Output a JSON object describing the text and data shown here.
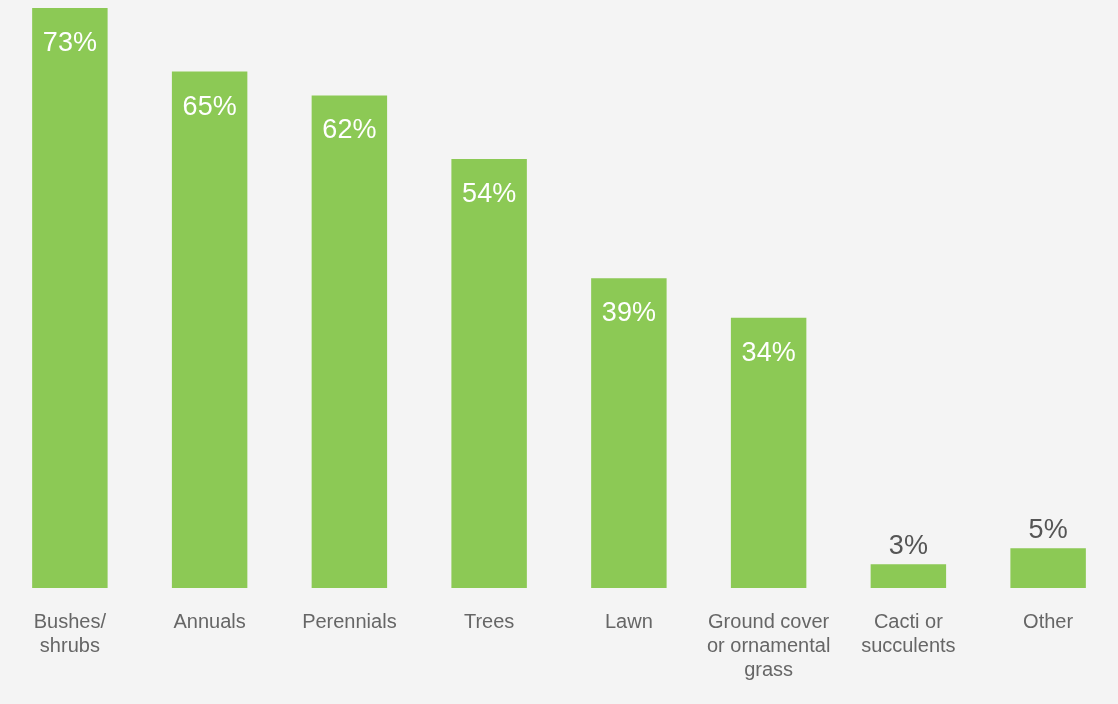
{
  "chart_data": {
    "type": "bar",
    "categories": [
      "Bushes/ shrubs",
      "Annuals",
      "Perennials",
      "Trees",
      "Lawn",
      "Ground cover or ornamental grass",
      "Cacti or succulents",
      "Other"
    ],
    "values": [
      73,
      65,
      62,
      54,
      39,
      34,
      3,
      5
    ],
    "value_labels": [
      "73%",
      "65%",
      "62%",
      "54%",
      "39%",
      "34%",
      "3%",
      "5%"
    ],
    "color": "#8cc955",
    "grid": false,
    "legend": false
  }
}
